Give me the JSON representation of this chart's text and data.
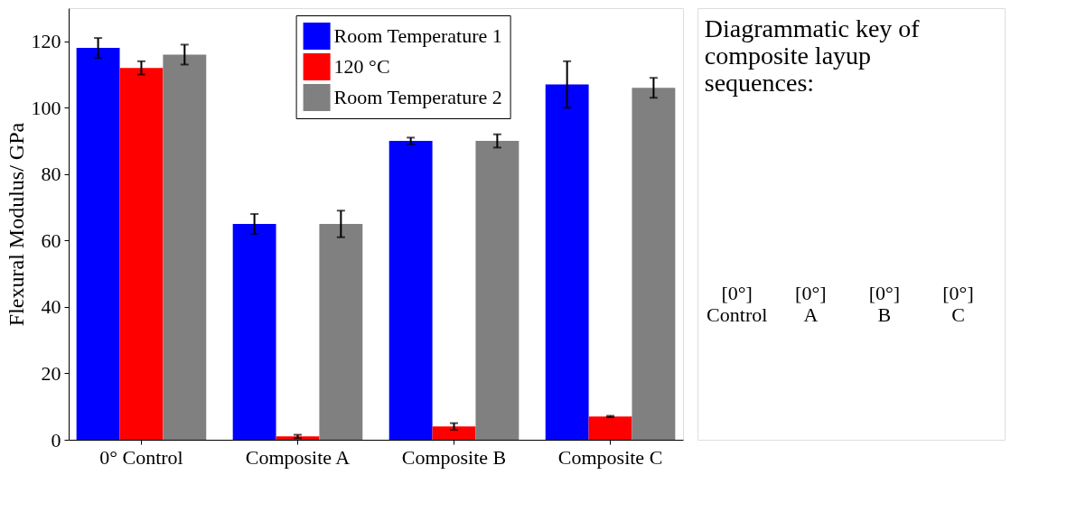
{
  "chart_data": {
    "type": "bar",
    "ylabel": "Flexural Modulus/ GPa",
    "categories": [
      "0° Control",
      "Composite A",
      "Composite B",
      "Composite C"
    ],
    "series": [
      {
        "name": "Room Temperature 1",
        "color": "#0000ff",
        "values": [
          118,
          65,
          90,
          107
        ],
        "errors": [
          3,
          3,
          1,
          7
        ]
      },
      {
        "name": "120 °C",
        "color": "#ff0000",
        "values": [
          112,
          1,
          4,
          7
        ],
        "errors": [
          2,
          0.5,
          1,
          0.2
        ]
      },
      {
        "name": "Room Temperature 2",
        "color": "#808080",
        "values": [
          116,
          65,
          90,
          106
        ],
        "errors": [
          3,
          4,
          2,
          3
        ]
      }
    ],
    "ylim": [
      0,
      130
    ],
    "yticks": [
      0,
      20,
      40,
      60,
      80,
      100,
      120
    ],
    "grid": false,
    "legend": "top",
    "annotations": [
      "Diagrammatic key of\ncomposite layup\nsequences:",
      "[0°]\nControl",
      "[0°]\nA",
      "[0°]\nB",
      "[0°]\nC"
    ]
  }
}
